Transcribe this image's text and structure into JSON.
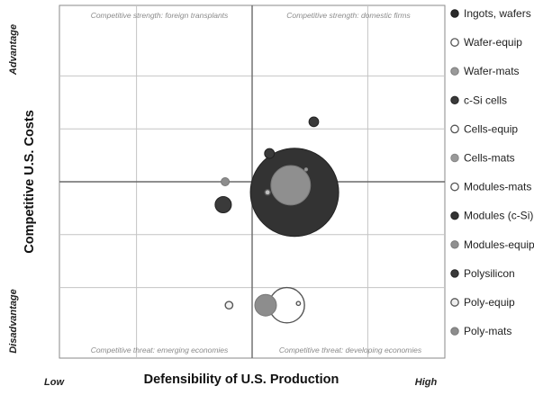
{
  "chart_data": {
    "type": "bubble",
    "title": "",
    "xlabel": "Defensibility of U.S. Production",
    "ylabel": "Competitive U.S. Costs",
    "x_low_label": "Low",
    "x_high_label": "High",
    "y_top_label": "Advantage",
    "y_bottom_label": "Disadvantage",
    "xlim": [
      -1,
      1
    ],
    "ylim": [
      -1,
      1
    ],
    "grid": true,
    "legend_position": "right",
    "quadrant_labels": {
      "top_left": "Competitive strength: foreign transplants",
      "top_right": "Competitive strength: domestic firms",
      "bottom_left": "Competitive threat: emerging economies",
      "bottom_right": "Competitive threat: developing economies"
    },
    "series": [
      {
        "name": "Ingots, wafers",
        "fill": "#2a2a2a",
        "stroke": "#1a1a1a",
        "points": []
      },
      {
        "name": "Wafer-equip",
        "fill": "#ffffff",
        "stroke": "#555555",
        "points": [
          {
            "x": 0.24,
            "y": -0.69,
            "size": 0.5
          }
        ]
      },
      {
        "name": "Wafer-mats",
        "fill": "#9a9a9a",
        "stroke": "#7a7a7a",
        "points": []
      },
      {
        "name": "c-Si cells",
        "fill": "#3a3a3a",
        "stroke": "#222222",
        "points": [
          {
            "x": 0.32,
            "y": 0.34,
            "size": 3.0
          }
        ]
      },
      {
        "name": "Cells-equip",
        "fill": "#ffffff",
        "stroke": "#555555",
        "points": [
          {
            "x": 0.18,
            "y": -0.7,
            "size": 40
          }
        ]
      },
      {
        "name": "Cells-mats",
        "fill": "#999999",
        "stroke": "#888888",
        "points": [
          {
            "x": 0.28,
            "y": 0.07,
            "size": 0.3
          }
        ]
      },
      {
        "name": "Modules-mats",
        "fill": "#ffffff",
        "stroke": "#555555",
        "points": []
      },
      {
        "name": "Modules (c-Si)",
        "fill": "#333333",
        "stroke": "#222222",
        "points": [
          {
            "x": 0.22,
            "y": -0.06,
            "size": 250
          }
        ]
      },
      {
        "name": "Modules-equip",
        "fill": "#8f8f8f",
        "stroke": "#7a7a7a",
        "points": [
          {
            "x": 0.2,
            "y": -0.02,
            "size": 50
          }
        ]
      },
      {
        "name": "Polysilicon",
        "fill": "#3a3a3a",
        "stroke": "#222222",
        "points": [
          {
            "x": -0.15,
            "y": -0.13,
            "size": 8.5
          },
          {
            "x": 0.09,
            "y": 0.16,
            "size": 3.1
          }
        ]
      },
      {
        "name": "Poly-equip",
        "fill": "#eeeeee",
        "stroke": "#555555",
        "points": [
          {
            "x": -0.12,
            "y": -0.7,
            "size": 1.8
          },
          {
            "x": 0.08,
            "y": -0.06,
            "size": 1.0
          }
        ]
      },
      {
        "name": "Poly-mats",
        "fill": "#8d8d8d",
        "stroke": "#777777",
        "points": [
          {
            "x": -0.14,
            "y": 0.0,
            "size": 2.1
          },
          {
            "x": 0.07,
            "y": -0.7,
            "size": 15
          }
        ]
      }
    ]
  }
}
